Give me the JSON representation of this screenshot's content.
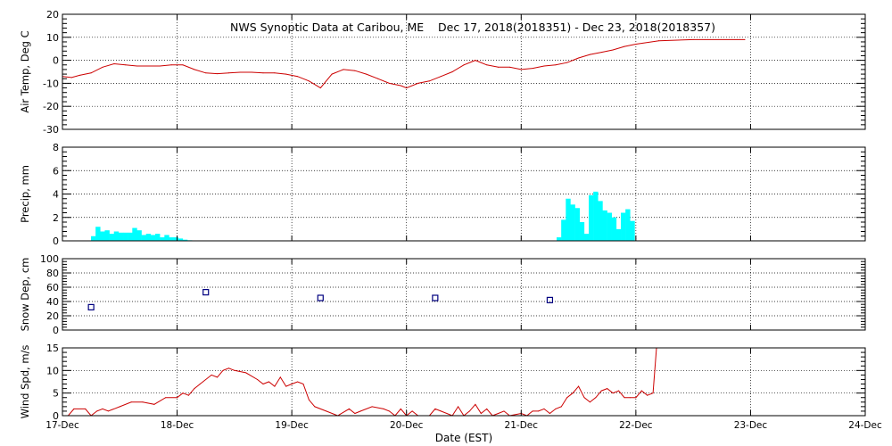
{
  "title": "NWS Synoptic Data at Caribou, ME    Dec 17, 2018(2018351) - Dec 23, 2018(2018357)",
  "x_axis": {
    "label": "Date (EST)",
    "ticks": [
      "17-Dec",
      "18-Dec",
      "19-Dec",
      "20-Dec",
      "21-Dec",
      "22-Dec",
      "23-Dec",
      "24-Dec"
    ]
  },
  "colors": {
    "temp": "#cc0000",
    "precip": "#00ffff",
    "snow": "#000080",
    "wind": "#cc0000",
    "grid": "#000000"
  },
  "chart_data": [
    {
      "type": "line",
      "ylabel": "Air Temp, Deg C",
      "ylim": [
        -30,
        20
      ],
      "yticks": [
        -30,
        -20,
        -10,
        0,
        10,
        20
      ],
      "grid": true,
      "x_unit": "days since 17-Dec",
      "x": [
        0,
        0.08,
        0.15,
        0.25,
        0.35,
        0.45,
        0.55,
        0.65,
        0.75,
        0.85,
        0.95,
        1.05,
        1.15,
        1.25,
        1.35,
        1.45,
        1.55,
        1.65,
        1.75,
        1.85,
        1.95,
        2.05,
        2.15,
        2.25,
        2.35,
        2.45,
        2.55,
        2.65,
        2.75,
        2.85,
        2.95,
        3.0,
        3.1,
        3.2,
        3.3,
        3.4,
        3.5,
        3.6,
        3.7,
        3.8,
        3.9,
        4.0,
        4.1,
        4.2,
        4.3,
        4.4,
        4.5,
        4.6,
        4.7,
        4.8,
        4.9,
        5.0,
        5.2,
        5.5,
        5.95
      ],
      "y": [
        -7,
        -7.5,
        -6.5,
        -5.5,
        -3,
        -1.5,
        -2,
        -2.5,
        -2.5,
        -2.5,
        -2,
        -2,
        -4,
        -5.5,
        -5.8,
        -5.5,
        -5.2,
        -5.2,
        -5.5,
        -5.5,
        -6,
        -7,
        -9,
        -12,
        -6,
        -4,
        -4.5,
        -6,
        -8,
        -10,
        -11,
        -12,
        -10,
        -9,
        -7,
        -5,
        -2,
        0,
        -2,
        -3,
        -3,
        -4,
        -3.5,
        -2.5,
        -2,
        -1,
        1,
        2.5,
        3.5,
        4.5,
        6,
        7,
        8.5,
        9,
        9
      ]
    },
    {
      "type": "bar",
      "ylabel": "Precip, mm",
      "ylim": [
        0,
        8
      ],
      "yticks": [
        0,
        2,
        4,
        6,
        8
      ],
      "grid": true,
      "x_unit": "days since 17-Dec",
      "bar_width": 0.042,
      "x": [
        0.27,
        0.31,
        0.35,
        0.39,
        0.43,
        0.47,
        0.51,
        0.55,
        0.59,
        0.63,
        0.67,
        0.71,
        0.75,
        0.79,
        0.83,
        0.87,
        0.91,
        0.95,
        0.99,
        1.03,
        1.07,
        1.11,
        4.33,
        4.37,
        4.41,
        4.45,
        4.49,
        4.53,
        4.57,
        4.61,
        4.65,
        4.69,
        4.73,
        4.77,
        4.81,
        4.85,
        4.89,
        4.93,
        4.97
      ],
      "values": [
        0.4,
        1.2,
        0.8,
        0.9,
        0.6,
        0.8,
        0.7,
        0.7,
        0.7,
        1.1,
        0.9,
        0.5,
        0.6,
        0.5,
        0.6,
        0.3,
        0.5,
        0.3,
        0.3,
        0.2,
        0.1,
        0.05,
        0.3,
        1.8,
        3.6,
        3.1,
        2.8,
        1.6,
        0.6,
        3.9,
        4.2,
        3.4,
        2.6,
        2.4,
        2.0,
        1.0,
        2.4,
        2.7,
        1.7
      ]
    },
    {
      "type": "scatter",
      "ylabel": "Snow Dep, cm",
      "ylim": [
        0,
        100
      ],
      "yticks": [
        0,
        20,
        40,
        60,
        80,
        100
      ],
      "grid": true,
      "x_unit": "days since 17-Dec",
      "x": [
        0.25,
        1.25,
        2.25,
        3.25,
        4.25
      ],
      "y": [
        32,
        53,
        45,
        45,
        42
      ]
    },
    {
      "type": "line",
      "ylabel": "Wind Spd, m/s",
      "ylim": [
        0,
        15
      ],
      "yticks": [
        0,
        5,
        10,
        15
      ],
      "grid": true,
      "x_unit": "days since 17-Dec",
      "x": [
        0,
        0.05,
        0.1,
        0.2,
        0.25,
        0.3,
        0.35,
        0.4,
        0.5,
        0.6,
        0.7,
        0.8,
        0.9,
        1.0,
        1.05,
        1.1,
        1.15,
        1.2,
        1.3,
        1.35,
        1.4,
        1.45,
        1.5,
        1.6,
        1.7,
        1.75,
        1.8,
        1.85,
        1.9,
        1.95,
        2.0,
        2.05,
        2.1,
        2.15,
        2.2,
        2.3,
        2.4,
        2.5,
        2.55,
        2.6,
        2.7,
        2.8,
        2.85,
        2.9,
        2.95,
        3.0,
        3.05,
        3.1,
        3.15,
        3.2,
        3.25,
        3.3,
        3.4,
        3.45,
        3.5,
        3.55,
        3.6,
        3.65,
        3.7,
        3.75,
        3.8,
        3.85,
        3.9,
        4.0,
        4.05,
        4.1,
        4.15,
        4.2,
        4.25,
        4.3,
        4.35,
        4.4,
        4.45,
        4.5,
        4.55,
        4.6,
        4.65,
        4.7,
        4.75,
        4.8,
        4.85,
        4.9,
        4.95,
        5.0,
        5.05,
        5.1,
        5.15,
        5.18
      ],
      "y": [
        0,
        0,
        1.5,
        1.5,
        0,
        1,
        1.5,
        1,
        2,
        3,
        3,
        2.5,
        4,
        4,
        5,
        4.5,
        6,
        7,
        9,
        8.5,
        10,
        10.5,
        10,
        9.5,
        8,
        7,
        7.5,
        6.5,
        8.5,
        6.5,
        7,
        7.5,
        7,
        3.5,
        2,
        1,
        0,
        1.5,
        0.5,
        1,
        2,
        1.5,
        1,
        0,
        1.5,
        0,
        1,
        0,
        0,
        0,
        1.5,
        1,
        0,
        2,
        0,
        1,
        2.5,
        0.5,
        1.5,
        0,
        0.5,
        1,
        0,
        0.5,
        0,
        1,
        1,
        1.5,
        0.5,
        1.5,
        2,
        4,
        5,
        6.5,
        4,
        3,
        4,
        5.5,
        6,
        5,
        5.5,
        4,
        4,
        4,
        5.5,
        4.5,
        5,
        15
      ]
    }
  ]
}
